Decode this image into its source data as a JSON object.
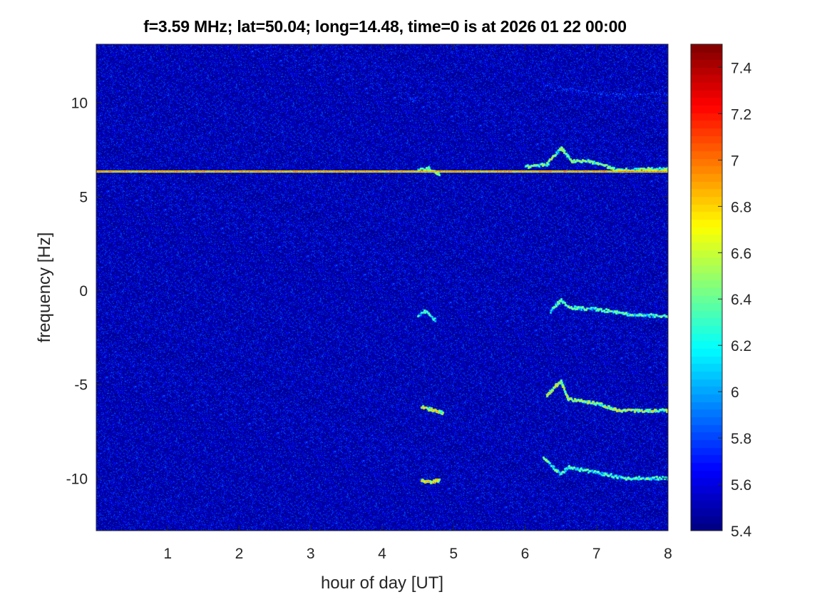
{
  "chart_data": {
    "type": "heatmap",
    "title": "f=3.59 MHz;  lat=50.04; long=14.48, time=0 is at 2026 01 22 00:00",
    "xlabel": "hour of day [UT]",
    "ylabel": "frequency [Hz]",
    "xlim": [
      0,
      8
    ],
    "ylim": [
      -12.8,
      13.1
    ],
    "xticks": [
      1,
      2,
      3,
      4,
      5,
      6,
      7,
      8
    ],
    "yticks": [
      -10,
      -5,
      0,
      5,
      10
    ],
    "colormap": "jet",
    "colorbar": {
      "range": [
        5.4,
        7.5
      ],
      "ticks": [
        5.4,
        5.6,
        5.8,
        6,
        6.2,
        6.4,
        6.6,
        6.8,
        7,
        7.2,
        7.4
      ],
      "tick_labels": [
        "5.4",
        "5.6",
        "5.8",
        "6",
        "6.2",
        "6.4",
        "6.6",
        "6.8",
        "7",
        "7.2",
        "7.4"
      ]
    },
    "background_level": 5.5,
    "features": [
      {
        "points": [
          [
            0,
            6.35
          ],
          [
            8,
            6.35
          ]
        ],
        "peak": 7.0
      },
      {
        "points": [
          [
            4.38,
            10.15
          ],
          [
            4.5,
            10.3
          ]
        ],
        "peak": 6.1
      },
      {
        "points": [
          [
            4.5,
            6.4
          ],
          [
            4.65,
            6.5
          ],
          [
            4.8,
            6.2
          ]
        ],
        "peak": 6.9
      },
      {
        "points": [
          [
            6.0,
            6.6
          ],
          [
            6.3,
            6.7
          ],
          [
            6.5,
            7.6
          ],
          [
            6.65,
            6.9
          ],
          [
            6.9,
            6.9
          ],
          [
            7.3,
            6.4
          ],
          [
            8.0,
            6.5
          ]
        ],
        "peak": 6.9
      },
      {
        "points": [
          [
            6.25,
            10.9
          ],
          [
            6.8,
            10.6
          ],
          [
            7.3,
            10.4
          ],
          [
            8.0,
            10.5
          ]
        ],
        "peak": 6.0
      },
      {
        "points": [
          [
            4.5,
            -1.3
          ],
          [
            4.6,
            -1.1
          ],
          [
            4.75,
            -1.6
          ]
        ],
        "peak": 6.7
      },
      {
        "points": [
          [
            6.35,
            -1.1
          ],
          [
            6.5,
            -0.5
          ],
          [
            6.6,
            -0.9
          ],
          [
            7.0,
            -1.0
          ],
          [
            7.5,
            -1.3
          ],
          [
            8.0,
            -1.35
          ]
        ],
        "peak": 6.8
      },
      {
        "points": [
          [
            4.55,
            -6.2
          ],
          [
            4.65,
            -6.3
          ],
          [
            4.85,
            -6.5
          ]
        ],
        "peak": 7.1
      },
      {
        "points": [
          [
            6.3,
            -5.6
          ],
          [
            6.5,
            -4.8
          ],
          [
            6.6,
            -5.8
          ],
          [
            7.0,
            -6.0
          ],
          [
            7.3,
            -6.4
          ],
          [
            8.0,
            -6.4
          ]
        ],
        "peak": 7.0
      },
      {
        "points": [
          [
            4.55,
            -10.1
          ],
          [
            4.65,
            -10.2
          ],
          [
            4.8,
            -10.1
          ]
        ],
        "peak": 7.2
      },
      {
        "points": [
          [
            6.25,
            -8.9
          ],
          [
            6.5,
            -9.8
          ],
          [
            6.6,
            -9.4
          ],
          [
            7.0,
            -9.7
          ],
          [
            7.4,
            -10.0
          ],
          [
            8.0,
            -10.0
          ]
        ],
        "peak": 6.8
      }
    ]
  }
}
